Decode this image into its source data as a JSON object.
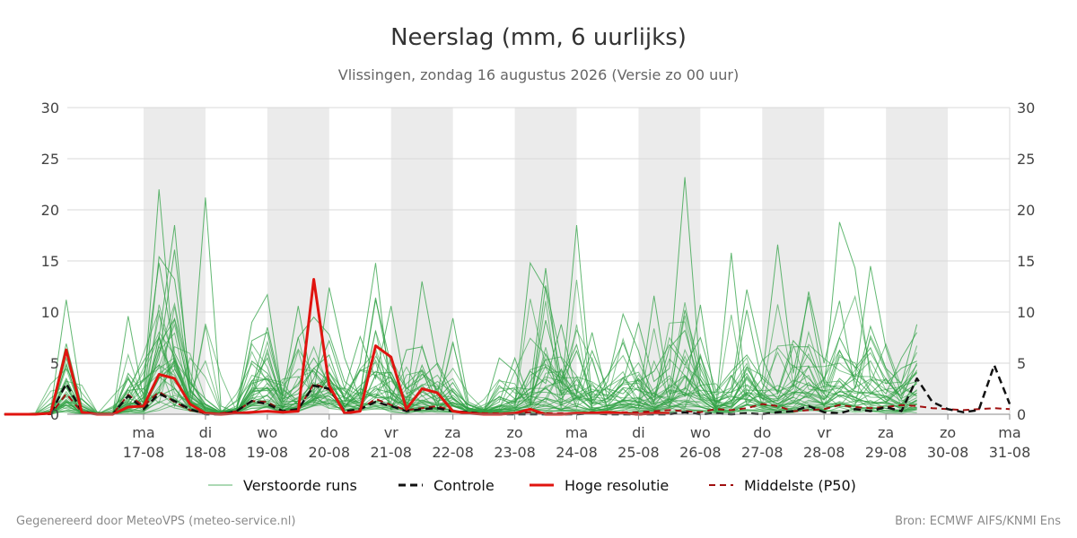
{
  "chart_data": {
    "type": "line",
    "title": "Neerslag (mm, 6 uurlijks)",
    "subtitle": "Vlissingen, zondag 16 augustus 2026 (Versie zo 00 uur)",
    "ylim": [
      0,
      30
    ],
    "yticks": [
      0,
      5,
      10,
      15,
      20,
      25,
      30
    ],
    "y_axis_both_sides": true,
    "grid": true,
    "x_step_hours": 6,
    "x_start_hour": -54,
    "x_end_hour": 372,
    "x_axis_reference_date": "17-08",
    "x_tick_labels": [
      {
        "hour": 0,
        "day": "ma",
        "date": "17-08"
      },
      {
        "hour": 24,
        "day": "di",
        "date": "18-08"
      },
      {
        "hour": 48,
        "day": "wo",
        "date": "19-08"
      },
      {
        "hour": 72,
        "day": "do",
        "date": "20-08"
      },
      {
        "hour": 96,
        "day": "vr",
        "date": "21-08"
      },
      {
        "hour": 120,
        "day": "za",
        "date": "22-08"
      },
      {
        "hour": 144,
        "day": "zo",
        "date": "23-08"
      },
      {
        "hour": 168,
        "day": "ma",
        "date": "24-08"
      },
      {
        "hour": 192,
        "day": "di",
        "date": "25-08"
      },
      {
        "hour": 216,
        "day": "wo",
        "date": "26-08"
      },
      {
        "hour": 240,
        "day": "do",
        "date": "27-08"
      },
      {
        "hour": 264,
        "day": "vr",
        "date": "28-08"
      },
      {
        "hour": 288,
        "day": "za",
        "date": "29-08"
      },
      {
        "hour": 312,
        "day": "zo",
        "date": "30-08"
      },
      {
        "hour": 336,
        "day": "ma",
        "date": "31-08"
      }
    ],
    "shaded_days_hours": [
      [
        0,
        24
      ],
      [
        48,
        72
      ],
      [
        96,
        120
      ],
      [
        144,
        168
      ],
      [
        192,
        216
      ],
      [
        240,
        264
      ],
      [
        288,
        312
      ]
    ],
    "shade_color": "#ebebeb",
    "series": [
      {
        "name": "Controle",
        "style": "dashed",
        "color": "#111111",
        "values": [
          0,
          0,
          0,
          0.1,
          3.0,
          0.3,
          0,
          0,
          1.8,
          0.5,
          2.0,
          1.3,
          0.5,
          0,
          0,
          0.3,
          1.3,
          1.0,
          0.3,
          0.5,
          2.8,
          2.5,
          0.3,
          0.5,
          1.2,
          0.8,
          0.3,
          0.5,
          0.6,
          0.3,
          0.2,
          0,
          0,
          0,
          0,
          0,
          0,
          0,
          0.1,
          0,
          0,
          0,
          0,
          0,
          0.2,
          0,
          0.1,
          0,
          0.1,
          0,
          0.2,
          0.3,
          0.8,
          0.2,
          0.1,
          0.5,
          0.3,
          0.7,
          0.3,
          3.5,
          1.2,
          0.5,
          0.2,
          0.4,
          4.8,
          1.0
        ]
      },
      {
        "name": "Hoge resolutie",
        "style": "solid",
        "color": "#e0140f",
        "values": [
          0,
          0,
          0,
          0.1,
          6.3,
          0.2,
          0,
          0,
          0.7,
          0.8,
          3.9,
          3.5,
          1.0,
          0.1,
          0,
          0.1,
          0.2,
          0.3,
          0.2,
          0.3,
          13.2,
          2.8,
          0.1,
          0.3,
          6.7,
          5.6,
          0.5,
          2.5,
          2.1,
          0.3,
          0.1,
          0,
          0,
          0.1,
          0.5,
          0,
          0,
          0.1,
          0.1,
          0.2,
          0.1,
          0,
          0.1,
          0.1
        ]
      },
      {
        "name": "Middelste (P50)",
        "style": "dashed",
        "color": "#a01010",
        "values": [
          0,
          0,
          0,
          0,
          2.0,
          0.2,
          0,
          0,
          1.9,
          0.8,
          2.2,
          1.2,
          0.4,
          0.1,
          0.1,
          0.3,
          1.3,
          1.2,
          0.3,
          0.4,
          3.0,
          2.4,
          0.3,
          0.5,
          1.5,
          0.9,
          0.4,
          0.6,
          0.8,
          0.3,
          0.2,
          0.1,
          0.1,
          0.1,
          0.2,
          0.1,
          0.1,
          0.1,
          0.2,
          0.1,
          0.2,
          0.2,
          0.3,
          0.4,
          0.3,
          0.2,
          0.5,
          0.4,
          0.6,
          1.0,
          0.8,
          0.3,
          0.4,
          0.5,
          0.9,
          0.7,
          0.6,
          0.7,
          0.9,
          0.8,
          0.6,
          0.5,
          0.4,
          0.5,
          0.6,
          0.5
        ]
      }
    ],
    "ensemble": {
      "name": "Verstoorde runs",
      "color": "#2ea043",
      "style": "thin",
      "members": [
        [
          0,
          0,
          0,
          0.5,
          11.2,
          1.5,
          0.2,
          0,
          3.5,
          1.0,
          15.4,
          13.2,
          2.5,
          0.5,
          0.3,
          0.5,
          9.0,
          11.7,
          1.5,
          2.0,
          4.5,
          3.2,
          0.8,
          2.1,
          11.4,
          3.5,
          1.2,
          13.0,
          4.8,
          1.5,
          0.5,
          0.3,
          1.5,
          1.0,
          14.8,
          12.2,
          3.5,
          6.8,
          1.0,
          3.2,
          9.8,
          6.2,
          1.0,
          1.5,
          10.2,
          4.5,
          1.0,
          2.5,
          12.2,
          5.5,
          2.0,
          6.6,
          6.6,
          2.5,
          18.8,
          14.3,
          3.5,
          2.0,
          5.5,
          8.0
        ],
        [
          0,
          0,
          0,
          0.3,
          6.9,
          0.8,
          0.1,
          0,
          9.6,
          1.5,
          5.5,
          16.1,
          3.2,
          1.0,
          0.2,
          0.3,
          2.5,
          8.5,
          2.0,
          10.6,
          2.0,
          12.4,
          5.5,
          1.5,
          2.0,
          1.2,
          6.3,
          6.6,
          2.0,
          9.4,
          1.2,
          0.5,
          0.8,
          1.3,
          2.5,
          14.3,
          1.8,
          18.5,
          1.2,
          0.8,
          2.5,
          1.0,
          11.6,
          2.0,
          2.5,
          10.7,
          0.8,
          15.8,
          1.5,
          3.5,
          16.6,
          4.0,
          11.5,
          3.0,
          2.5,
          3.5,
          14.5,
          6.5,
          2.0,
          3.0
        ],
        [
          0,
          0,
          0,
          0.2,
          4.8,
          0.4,
          0,
          0,
          4.0,
          2.0,
          22.0,
          4.5,
          1.2,
          21.2,
          0.8,
          0.2,
          3.0,
          3.5,
          1.0,
          1.0,
          3.5,
          7.2,
          2.5,
          7.6,
          3.5,
          10.6,
          2.0,
          2.8,
          1.5,
          3.1,
          0.6,
          0.3,
          5.5,
          4.2,
          1.0,
          12.6,
          5.5,
          2.2,
          8.0,
          1.5,
          3.1,
          8.9,
          3.2,
          4.5,
          23.2,
          3.8,
          1.5,
          2.2,
          4.0,
          1.5,
          1.5,
          2.5,
          12.0,
          5.0,
          11.1,
          2.5,
          8.6,
          4.5,
          3.0,
          8.8
        ],
        [
          0,
          0,
          0,
          0.2,
          3.5,
          0.3,
          0,
          0,
          2.5,
          5.2,
          7.5,
          18.5,
          2.2,
          0.9,
          0.2,
          0.3,
          7.2,
          8.0,
          1.5,
          3.0,
          5.5,
          3.0,
          1.0,
          5.0,
          14.8,
          1.5,
          0.8,
          4.8,
          1.2,
          2.5,
          0.9,
          0.4,
          2.8,
          1.5,
          4.2,
          3.0,
          8.8,
          2.0,
          6.2,
          2.5,
          2.0,
          3.5,
          1.2,
          6.5,
          8.2,
          2.8,
          1.2,
          1.8,
          10.2,
          3.0,
          1.5,
          4.8,
          3.5,
          2.0,
          6.2,
          3.5,
          2.0,
          3.5,
          1.5,
          5.0
        ],
        [
          0,
          0,
          0,
          0.1,
          2.8,
          0.2,
          0,
          0,
          1.5,
          1.2,
          6.8,
          9.3,
          2.0,
          0.6,
          0.1,
          0.2,
          3.2,
          5.5,
          1.2,
          2.4,
          4.5,
          5.8,
          1.3,
          2.8,
          4.2,
          3.5,
          1.1,
          2.2,
          1.3,
          1.6,
          0.4,
          0.2,
          0.8,
          0.6,
          1.8,
          2.5,
          1.5,
          3.4,
          1.0,
          1.2,
          2.6,
          2.4,
          1.4,
          2.6,
          3.8,
          2.3,
          0.8,
          1.2,
          3.6,
          1.8,
          1.0,
          2.0,
          3.1,
          1.4,
          3.5,
          2.2,
          2.1,
          1.8,
          1.0,
          2.4
        ],
        [
          0,
          0,
          0,
          0.1,
          2.0,
          0.2,
          0,
          0,
          0.9,
          0.6,
          3.5,
          4.8,
          1.1,
          0.4,
          0.1,
          0.1,
          1.8,
          2.6,
          0.7,
          1.1,
          2.8,
          3.5,
          0.8,
          1.4,
          2.5,
          2.1,
          0.6,
          1.2,
          0.9,
          0.8,
          0.3,
          0.1,
          0.5,
          0.4,
          1.0,
          1.5,
          0.9,
          1.6,
          0.6,
          0.8,
          1.4,
          1.2,
          0.7,
          1.3,
          2.0,
          1.4,
          0.5,
          0.8,
          1.9,
          1.1,
          0.6,
          1.2,
          1.8,
          0.9,
          1.9,
          1.4,
          1.2,
          1.1,
          0.6,
          1.4
        ],
        [
          0,
          0,
          0,
          0,
          1.2,
          0.1,
          0,
          0,
          0.5,
          0.3,
          1.8,
          2.5,
          0.6,
          0.2,
          0,
          0.1,
          0.9,
          1.3,
          0.4,
          0.6,
          1.5,
          1.8,
          0.4,
          0.7,
          1.3,
          1.1,
          0.3,
          0.6,
          0.5,
          0.4,
          0.2,
          0.1,
          0.3,
          0.2,
          0.5,
          0.8,
          0.5,
          0.8,
          0.3,
          0.4,
          0.7,
          0.6,
          0.4,
          0.7,
          1.0,
          0.7,
          0.3,
          0.4,
          1.0,
          0.6,
          0.3,
          0.6,
          0.9,
          0.5,
          1.0,
          0.7,
          0.6,
          0.6,
          0.3,
          0.7
        ],
        [
          0,
          0,
          0,
          0.2,
          5.5,
          0.5,
          0,
          0,
          1.2,
          3.5,
          14.8,
          6.0,
          3.0,
          1.5,
          0.3,
          0.4,
          5.2,
          4.0,
          1.8,
          7.5,
          9.5,
          7.8,
          3.2,
          2.0,
          11.2,
          4.8,
          2.5,
          3.5,
          5.0,
          2.2,
          1.0,
          0.4,
          1.2,
          5.5,
          1.2,
          9.2,
          3.0,
          6.2,
          2.0,
          3.8,
          7.0,
          3.2,
          4.2,
          6.8,
          4.8,
          7.5,
          2.3,
          4.2,
          5.8,
          3.5,
          2.2,
          7.2,
          5.5,
          3.5,
          7.5,
          4.5,
          6.5,
          3.0,
          4.5,
          5.2
        ]
      ]
    }
  },
  "legend": [
    {
      "key": "ensemble",
      "label": "Verstoorde runs"
    },
    {
      "key": "control",
      "label": "Controle"
    },
    {
      "key": "hires",
      "label": "Hoge resolutie"
    },
    {
      "key": "p50",
      "label": "Middelste (P50)"
    }
  ],
  "footer": {
    "left": "Gegenereerd door MeteoVPS (meteo-service.nl)",
    "right": "Bron: ECMWF AIFS/KNMI Ens"
  }
}
